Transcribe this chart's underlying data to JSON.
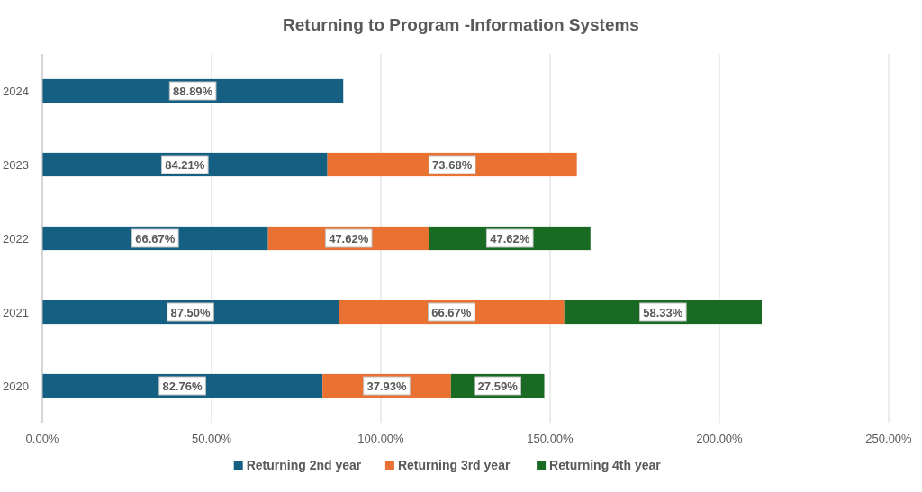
{
  "chart_data": {
    "type": "bar",
    "title": "Returning to Program -Information Systems",
    "orientation": "horizontal",
    "stacked": true,
    "categories": [
      "2024",
      "2023",
      "2022",
      "2021",
      "2020"
    ],
    "series": [
      {
        "name": "Returning 2nd year",
        "color": "#156082",
        "values": [
          88.89,
          84.21,
          66.67,
          87.5,
          82.76
        ],
        "value_labels": [
          "88.89%",
          "84.21%",
          "66.67%",
          "87.50%",
          "82.76%"
        ]
      },
      {
        "name": "Returning 3rd year",
        "color": "#e97132",
        "values": [
          null,
          73.68,
          47.62,
          66.67,
          37.93
        ],
        "value_labels": [
          null,
          "73.68%",
          "47.62%",
          "66.67%",
          "37.93%"
        ]
      },
      {
        "name": "Returning 4th year",
        "color": "#196b24",
        "values": [
          null,
          null,
          47.62,
          58.33,
          27.59
        ],
        "value_labels": [
          null,
          null,
          "47.62%",
          "58.33%",
          "27.59%"
        ]
      }
    ],
    "xlim": [
      0,
      250
    ],
    "xticks": [
      {
        "value": 0,
        "label": "0.00%"
      },
      {
        "value": 50,
        "label": "50.00%"
      },
      {
        "value": 100,
        "label": "100.00%"
      },
      {
        "value": 150,
        "label": "150.00%"
      },
      {
        "value": 200,
        "label": "200.00%"
      },
      {
        "value": 250,
        "label": "250.00%"
      }
    ],
    "grid": "x",
    "legend": "bottom"
  }
}
